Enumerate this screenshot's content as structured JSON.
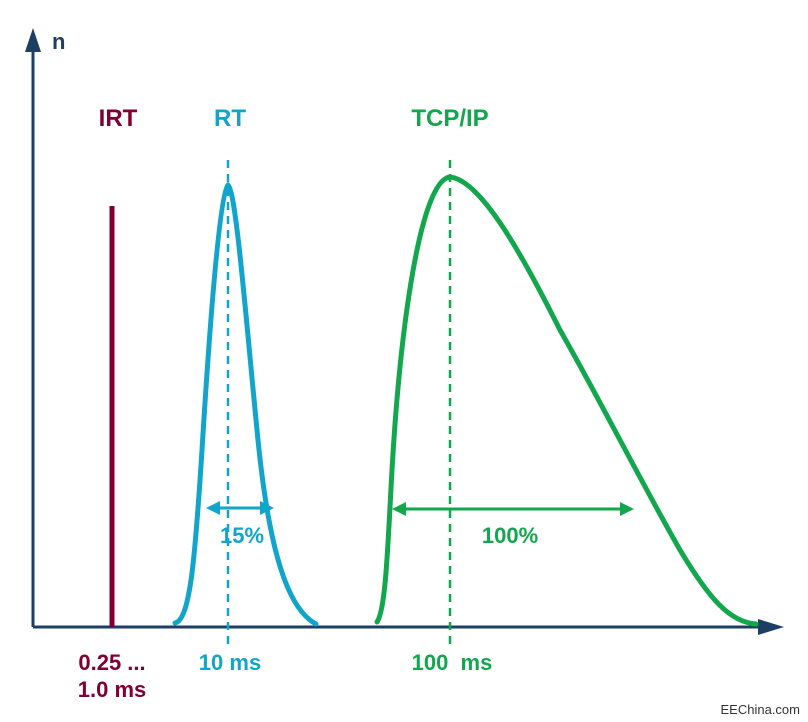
{
  "axes": {
    "y_label": "n",
    "color": "#1d3f64"
  },
  "series": {
    "irt": {
      "name": "IRT",
      "x_label_line1": "0.25 ...",
      "x_label_line2": "1.0 ms",
      "color": "#800035"
    },
    "rt": {
      "name": "RT",
      "x_label": "10 ms",
      "jitter_label": "15%",
      "color": "#12a5cc"
    },
    "tcpip": {
      "name": "TCP/IP",
      "x_label": "100  ms",
      "jitter_label": "100%",
      "color": "#12a74d"
    }
  },
  "watermark": "EEChina.com"
}
